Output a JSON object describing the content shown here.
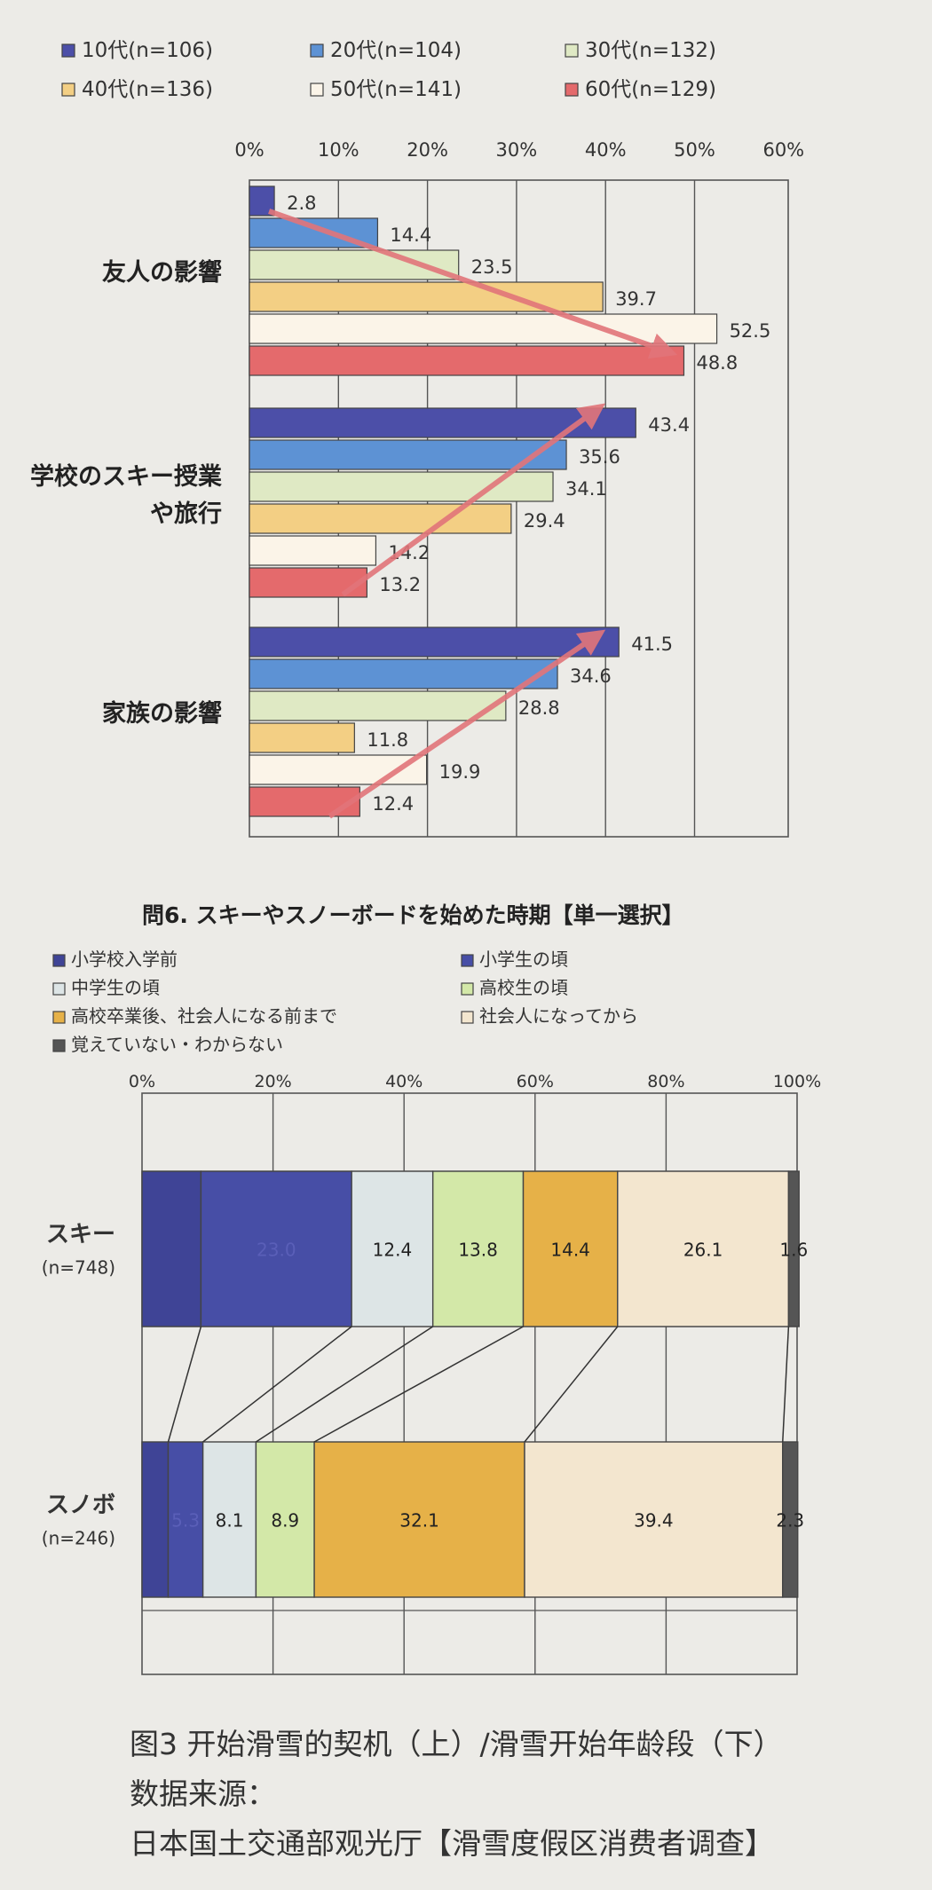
{
  "chart_data": [
    {
      "type": "bar",
      "orientation": "horizontal",
      "title": "",
      "xlabel": "",
      "ylabel": "",
      "xlim": [
        0,
        60
      ],
      "tick_labels": [
        "0%",
        "10%",
        "20%",
        "30%",
        "40%",
        "50%",
        "60%"
      ],
      "grid": true,
      "legend_position": "top",
      "categories": [
        "友人の影響",
        "学校のスキー授業\nや旅行",
        "家族の影響"
      ],
      "series": [
        {
          "name": "10代(n=106)",
          "color": "#4c4fa8",
          "values": [
            2.8,
            43.4,
            41.5
          ]
        },
        {
          "name": "20代(n=104)",
          "color": "#5d92d4",
          "values": [
            14.4,
            35.6,
            34.6
          ]
        },
        {
          "name": "30代(n=132)",
          "color": "#dfe9c4",
          "values": [
            23.5,
            34.1,
            28.8
          ]
        },
        {
          "name": "40代(n=136)",
          "color": "#f3cf84",
          "values": [
            39.7,
            29.4,
            11.8
          ]
        },
        {
          "name": "50代(n=141)",
          "color": "#fbf4e8",
          "values": [
            52.5,
            14.2,
            19.9
          ]
        },
        {
          "name": "60代(n=129)",
          "color": "#e46a6c",
          "values": [
            48.8,
            13.2,
            12.4
          ]
        }
      ],
      "value_labels": [
        [
          "2.8",
          "14.4",
          "23.5",
          "39.7",
          "52.5",
          "48.8"
        ],
        [
          "43.4",
          "35.6",
          "34.1",
          "29.4",
          "14.2",
          "13.2"
        ],
        [
          "41.5",
          "34.6",
          "28.8",
          "11.8",
          "19.9",
          "12.4"
        ]
      ],
      "annotations": "trend arrows"
    },
    {
      "type": "bar",
      "orientation": "horizontal-stacked-100",
      "title": "問6. スキーやスノーボードを始めた時期【単一選択】",
      "xlabel": "",
      "ylabel": "",
      "xlim": [
        0,
        100
      ],
      "tick_labels": [
        "0%",
        "20%",
        "40%",
        "60%",
        "80%",
        "100%"
      ],
      "grid": true,
      "legend_position": "top",
      "categories": [
        "スキー\n(n=748)",
        "スノボ\n(n=246)"
      ],
      "series": [
        {
          "name": "小学校入学前",
          "color": "#3f4496",
          "values": [
            9.0,
            4.0
          ]
        },
        {
          "name": "小学生の頃",
          "color": "#474ea6",
          "values": [
            23.0,
            5.3
          ]
        },
        {
          "name": "中学生の頃",
          "color": "#dde5e6",
          "values": [
            12.4,
            8.1
          ]
        },
        {
          "name": "高校生の頃",
          "color": "#d3e8a8",
          "values": [
            13.8,
            8.9
          ]
        },
        {
          "name": "高校卒業後、社会人になる前まで",
          "color": "#e6b148",
          "values": [
            14.4,
            32.1
          ]
        },
        {
          "name": "社会人になってから",
          "color": "#f3e6cf",
          "values": [
            26.1,
            39.4
          ]
        },
        {
          "name": "覚えていない・わからない",
          "color": "#555555",
          "values": [
            1.6,
            2.3
          ]
        }
      ],
      "value_labels": [
        [
          "",
          "23.0",
          "12.4",
          "13.8",
          "14.4",
          "26.1",
          "1.6"
        ],
        [
          "",
          "5.3",
          "8.1",
          "8.9",
          "32.1",
          "39.4",
          "2.3"
        ]
      ]
    }
  ],
  "caption": {
    "line1": "图3 开始滑雪的契机（上）/滑雪开始年龄段（下）",
    "line2": "数据来源：",
    "line3": "日本国土交通部观光厅【滑雪度假区消费者调查】"
  }
}
